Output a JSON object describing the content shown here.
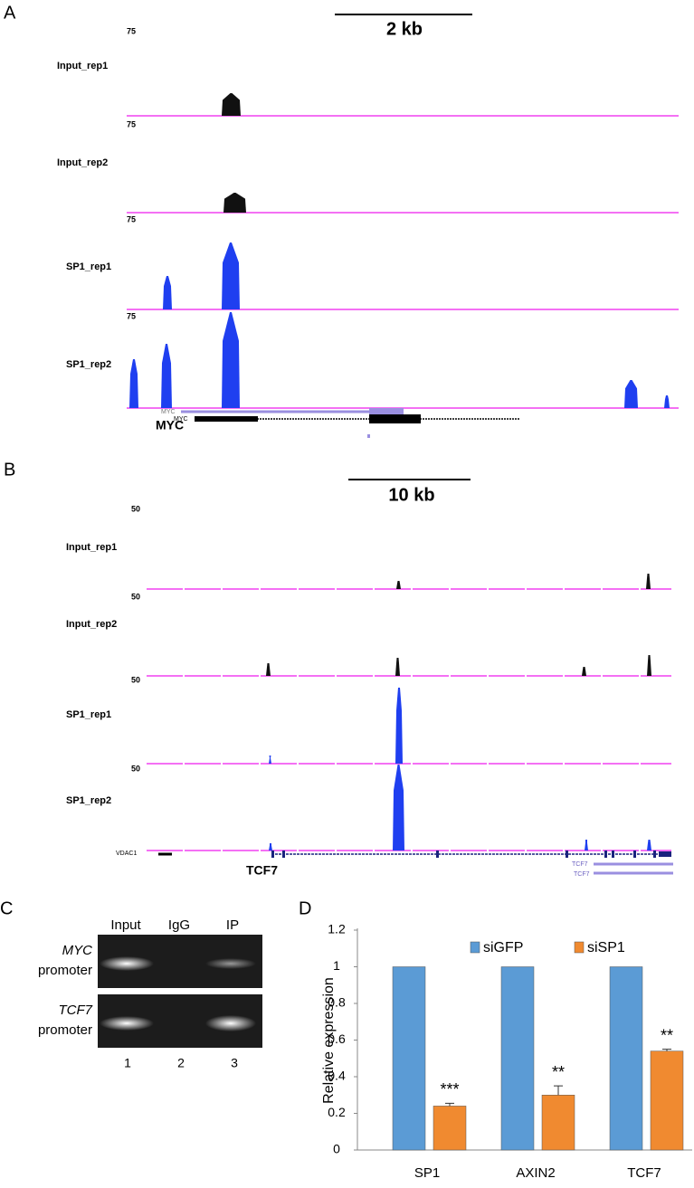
{
  "panel_a": {
    "letter": "A",
    "scale": "2 kb",
    "gene_name": "MYC",
    "gene_labels": [
      "MYC",
      "MYC"
    ],
    "tracks": [
      {
        "label": "Input_rep1",
        "max": "75"
      },
      {
        "label": "Input_rep2",
        "max": "75"
      },
      {
        "label": "SP1_rep1",
        "max": "75"
      },
      {
        "label": "SP1_rep2",
        "max": "75"
      }
    ]
  },
  "panel_b": {
    "letter": "B",
    "scale": "10 kb",
    "gene_name": "TCF7",
    "gene_labels": [
      "VDAC1",
      "TCF7",
      "TCF7"
    ],
    "tracks": [
      {
        "label": "Input_rep1",
        "max": "50"
      },
      {
        "label": "Input_rep2",
        "max": "50"
      },
      {
        "label": "SP1_rep1",
        "max": "50"
      },
      {
        "label": "SP1_rep2",
        "max": "50"
      }
    ]
  },
  "panel_c": {
    "letter": "C",
    "columns": [
      "Input",
      "IgG",
      "IP"
    ],
    "rows": [
      {
        "gene": "MYC",
        "suffix": "promoter"
      },
      {
        "gene": "TCF7",
        "suffix": "promoter"
      }
    ],
    "lanes": [
      "1",
      "2",
      "3"
    ]
  },
  "chart_data": {
    "type": "bar",
    "letter": "D",
    "ylabel": "Relative expression",
    "categories": [
      "SP1",
      "AXIN2",
      "TCF7"
    ],
    "series": [
      {
        "name": "siGFP",
        "color": "#5b9bd5",
        "values": [
          1,
          1,
          1
        ]
      },
      {
        "name": "siSP1",
        "color": "#f08a30",
        "values": [
          0.24,
          0.3,
          0.54
        ],
        "errors": [
          0.015,
          0.05,
          0.01
        ]
      }
    ],
    "annotations": [
      "***",
      "**",
      "**"
    ],
    "ylim": [
      0,
      1.2
    ],
    "yticks": [
      0,
      0.2,
      0.4,
      0.6,
      0.8,
      1,
      1.2
    ]
  }
}
